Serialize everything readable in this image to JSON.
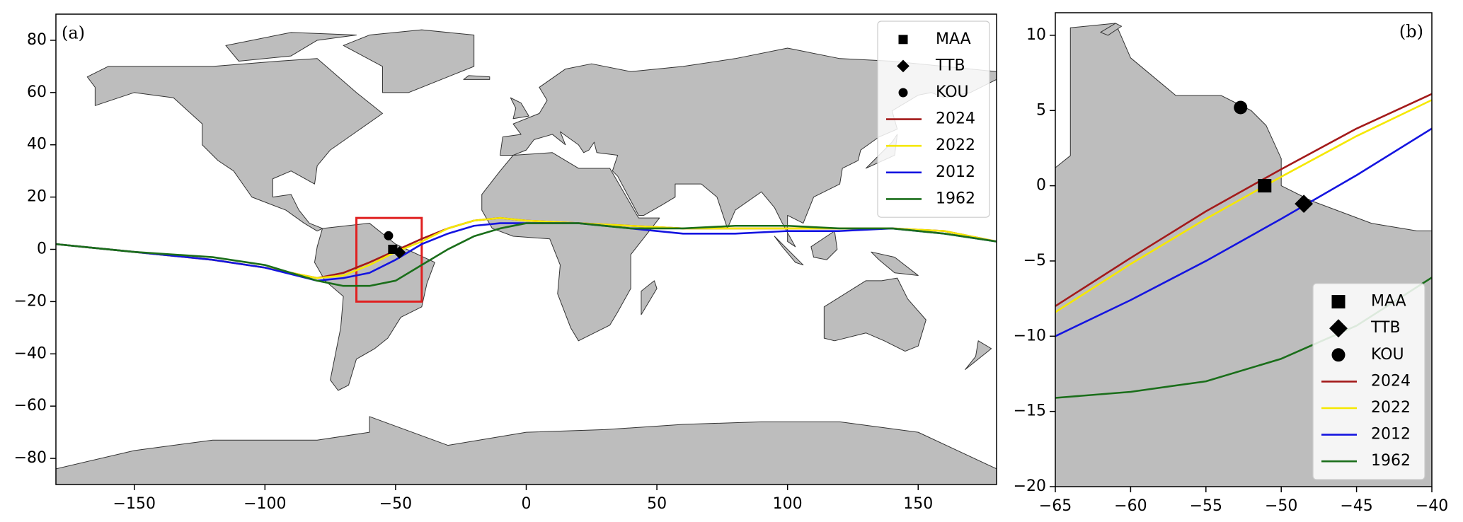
{
  "chart_data": [
    {
      "type": "line",
      "panel_label": "(a)",
      "panel_label_corner": "upper left",
      "legend": "upper right",
      "xlim": [
        -180,
        180
      ],
      "ylim": [
        -90,
        90
      ],
      "xticks": [
        {
          "value": -150,
          "label": "−150"
        },
        {
          "value": -100,
          "label": "−100"
        },
        {
          "value": -50,
          "label": "−50"
        },
        0,
        50,
        100,
        150
      ],
      "yticks": [
        {
          "value": -80,
          "label": "−80"
        },
        {
          "value": -60,
          "label": "−60"
        },
        {
          "value": -40,
          "label": "−40"
        },
        {
          "value": -20,
          "label": "−20"
        },
        0,
        20,
        40,
        60,
        80
      ],
      "highlight_box": {
        "xlim": [
          -65,
          -40
        ],
        "ylim": [
          -20,
          12
        ],
        "color": "#e02020"
      },
      "points": [
        {
          "name": "MAA",
          "marker": "square",
          "color": "#000000",
          "x": -51.1,
          "y": 0.0
        },
        {
          "name": "TTB",
          "marker": "diamond",
          "color": "#000000",
          "x": -48.5,
          "y": -1.2
        },
        {
          "name": "KOU",
          "marker": "circle",
          "color": "#000000",
          "x": -52.7,
          "y": 5.2
        }
      ],
      "series": [
        {
          "name": "2024",
          "color": "#a31a1a",
          "x": [
            -180,
            -150,
            -120,
            -100,
            -80,
            -70,
            -60,
            -50,
            -40,
            -30,
            -20,
            -10,
            0,
            20,
            40,
            60,
            80,
            100,
            120,
            140,
            160,
            180
          ],
          "y": [
            2,
            -1,
            -4,
            -7,
            -11,
            -9,
            -5,
            -0.5,
            4,
            8,
            11,
            12,
            11,
            10,
            9,
            8,
            8,
            8,
            8,
            8,
            7,
            3
          ]
        },
        {
          "name": "2022",
          "color": "#f5e800",
          "x": [
            -180,
            -150,
            -120,
            -100,
            -80,
            -70,
            -60,
            -50,
            -40,
            -30,
            -20,
            -10,
            0,
            20,
            40,
            60,
            80,
            100,
            120,
            140,
            160,
            180
          ],
          "y": [
            2,
            -1,
            -4,
            -7,
            -11,
            -10,
            -6,
            -1,
            3,
            8,
            11,
            12,
            11,
            10,
            9,
            8,
            8,
            8,
            8,
            8,
            7,
            3
          ]
        },
        {
          "name": "2012",
          "color": "#1414e0",
          "x": [
            -180,
            -150,
            -120,
            -100,
            -80,
            -70,
            -60,
            -50,
            -40,
            -30,
            -20,
            -10,
            0,
            20,
            40,
            60,
            80,
            100,
            120,
            140,
            160,
            180
          ],
          "y": [
            2,
            -1,
            -4,
            -7,
            -12,
            -11,
            -9,
            -4,
            2,
            6,
            9,
            10,
            10,
            10,
            8,
            6,
            6,
            7,
            7,
            8,
            6,
            3
          ]
        },
        {
          "name": "1962",
          "color": "#1a6e1a",
          "x": [
            -180,
            -150,
            -120,
            -100,
            -80,
            -70,
            -60,
            -50,
            -40,
            -30,
            -20,
            -10,
            0,
            20,
            40,
            60,
            80,
            100,
            120,
            140,
            160,
            180
          ],
          "y": [
            2,
            -1,
            -3,
            -6,
            -12,
            -14,
            -14,
            -12,
            -6,
            0,
            5,
            8,
            10,
            10,
            8,
            8,
            9,
            9,
            8,
            8,
            6,
            3
          ]
        }
      ]
    },
    {
      "type": "line",
      "panel_label": "(b)",
      "panel_label_corner": "upper right",
      "legend": "lower right",
      "xlim": [
        -65,
        -40
      ],
      "ylim": [
        -20,
        11.5
      ],
      "xticks": [
        {
          "value": -65,
          "label": "−65"
        },
        {
          "value": -60,
          "label": "−60"
        },
        {
          "value": -55,
          "label": "−55"
        },
        {
          "value": -50,
          "label": "−50"
        },
        {
          "value": -45,
          "label": "−45"
        },
        {
          "value": -40,
          "label": "−40"
        }
      ],
      "yticks": [
        {
          "value": -20,
          "label": "−20"
        },
        {
          "value": -15,
          "label": "−15"
        },
        {
          "value": -10,
          "label": "−10"
        },
        {
          "value": -5,
          "label": "−5"
        },
        0,
        5,
        10
      ],
      "points": [
        {
          "name": "MAA",
          "marker": "square",
          "color": "#000000",
          "x": -51.1,
          "y": 0.0
        },
        {
          "name": "TTB",
          "marker": "diamond",
          "color": "#000000",
          "x": -48.5,
          "y": -1.2
        },
        {
          "name": "KOU",
          "marker": "circle",
          "color": "#000000",
          "x": -52.7,
          "y": 5.2
        }
      ],
      "series": [
        {
          "name": "2024",
          "color": "#a31a1a",
          "x": [
            -65,
            -60,
            -55,
            -50,
            -45,
            -40
          ],
          "y": [
            -8,
            -4.8,
            -1.7,
            1.1,
            3.8,
            6.1
          ]
        },
        {
          "name": "2022",
          "color": "#f5e800",
          "x": [
            -65,
            -60,
            -55,
            -50,
            -45,
            -40
          ],
          "y": [
            -8.4,
            -5.2,
            -2.2,
            0.6,
            3.3,
            5.7
          ]
        },
        {
          "name": "2012",
          "color": "#1414e0",
          "x": [
            -65,
            -60,
            -55,
            -50,
            -45,
            -40
          ],
          "y": [
            -10,
            -7.6,
            -5,
            -2.2,
            0.7,
            3.8
          ]
        },
        {
          "name": "1962",
          "color": "#1a6e1a",
          "x": [
            -65,
            -60,
            -55,
            -50,
            -45,
            -40
          ],
          "y": [
            -14.1,
            -13.7,
            -13,
            -11.5,
            -9.3,
            -6.1
          ]
        }
      ]
    }
  ]
}
